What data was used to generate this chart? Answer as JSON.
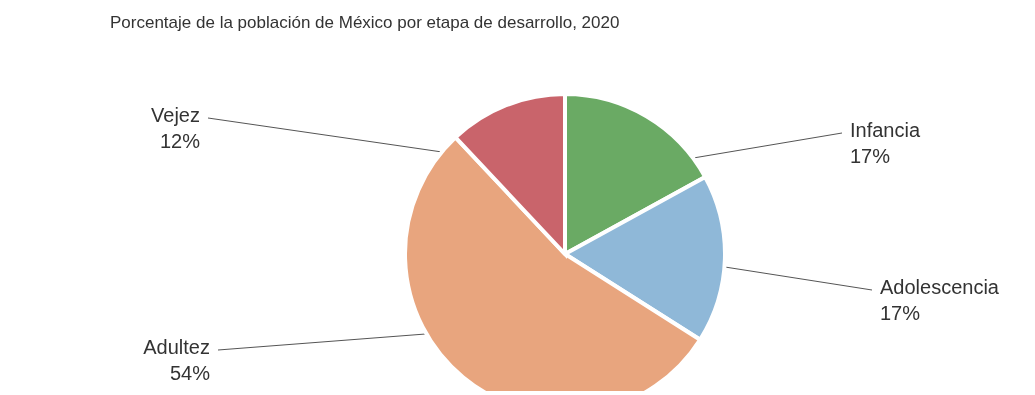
{
  "chart_data": {
    "type": "pie",
    "title": "Porcentaje de la población de México por etapa de desarrollo, 2020",
    "categories": [
      "Infancia",
      "Adolescencia",
      "Adultez",
      "Vejez"
    ],
    "values": [
      17,
      17,
      54,
      12
    ],
    "value_labels": [
      "17%",
      "17%",
      "54%",
      "12%"
    ],
    "colors": [
      "#6aaa64",
      "#8fb8d8",
      "#e8a57e",
      "#c9646b"
    ]
  }
}
